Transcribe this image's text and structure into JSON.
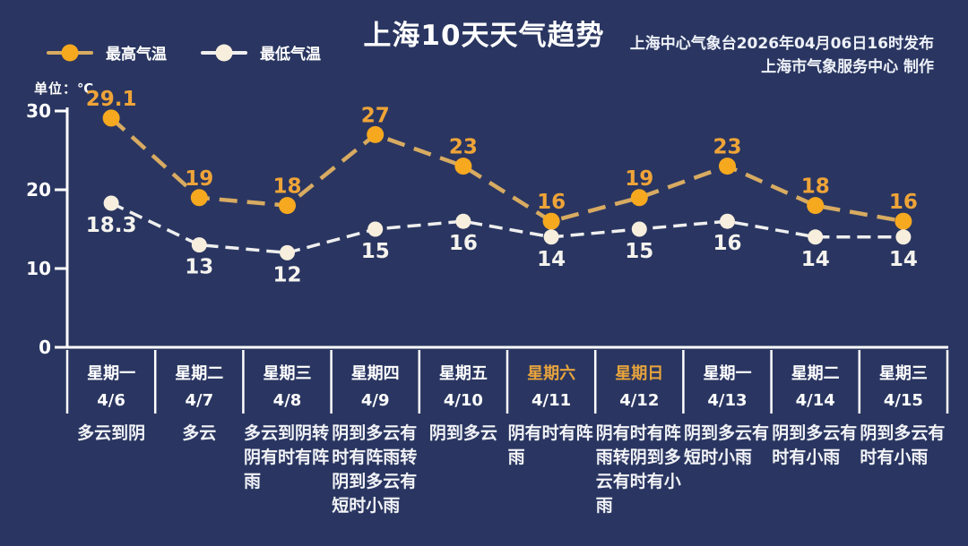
{
  "header": {
    "title": "上海10天天气趋势",
    "source_line1": "上海中心气象台2026年04月06日16时发布",
    "source_line2": "上海市气象服务中心  制作"
  },
  "legend": {
    "high_label": "最高气温",
    "low_label": "最低气温"
  },
  "axis": {
    "unit_label": "单位：℃",
    "y_ticks": [
      30,
      20,
      10,
      0
    ]
  },
  "colors": {
    "background": "#2a3661",
    "high_marker": "#f6a81f",
    "high_line": "#d8ab62",
    "high_text": "#efa438",
    "low_marker": "#f7eedd",
    "low_line": "#efefef",
    "low_text": "#f5f3ee",
    "axis": "#ffffff",
    "weekend_text": "#e8a43c"
  },
  "chart_data": {
    "type": "line",
    "title": "上海10天天气趋势",
    "ylabel": "单位：℃",
    "ylim": [
      0,
      30
    ],
    "y_ticks": [
      0,
      10,
      20,
      30
    ],
    "grid": false,
    "legend_position": "top-left",
    "categories": [
      "4/6",
      "4/7",
      "4/8",
      "4/9",
      "4/10",
      "4/11",
      "4/12",
      "4/13",
      "4/14",
      "4/15"
    ],
    "weekdays": [
      "星期一",
      "星期二",
      "星期三",
      "星期四",
      "星期五",
      "星期六",
      "星期日",
      "星期一",
      "星期二",
      "星期三"
    ],
    "highlighted_day_indices": [
      5,
      6
    ],
    "weather": [
      "多云到阴",
      "多云",
      "多云到阴转阴有时有阵雨",
      "阴到多云有时有阵雨转阴到多云有短时小雨",
      "阴到多云",
      "阴有时有阵雨",
      "阴有时有阵雨转阴到多云有时有小雨",
      "阴到多云有短时小雨",
      "阴到多云有时有小雨",
      "阴到多云有时有小雨"
    ],
    "series": [
      {
        "name": "最高气温",
        "values": [
          29.1,
          19,
          18,
          27,
          23,
          16,
          19,
          23,
          18,
          16
        ]
      },
      {
        "name": "最低气温",
        "values": [
          18.3,
          13,
          12,
          15,
          16,
          14,
          15,
          16,
          14,
          14
        ]
      }
    ]
  }
}
